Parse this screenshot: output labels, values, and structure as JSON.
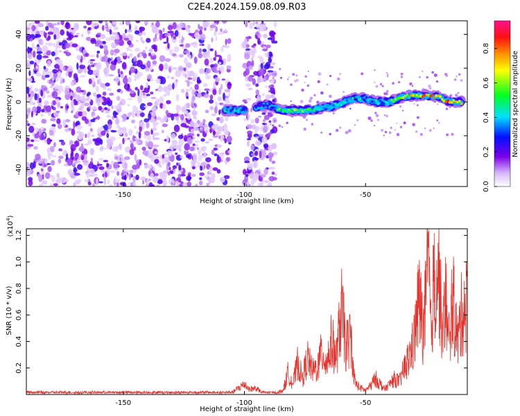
{
  "title": "C2E4.2024.159.08.09.R03",
  "chart_data": [
    {
      "type": "heatmap",
      "xlabel": "Height of straight line (km)",
      "ylabel": "Frequency (Hz)",
      "xlim": [
        -190,
        -8
      ],
      "ylim": [
        -50,
        48
      ],
      "xticks": [
        -150,
        -100,
        -50
      ],
      "yticks": [
        -40,
        -20,
        0,
        20,
        40
      ],
      "colorbar": {
        "label": "Normalized spectral amplitude",
        "range": [
          0,
          0.96
        ],
        "ticks": [
          0.0,
          0.2,
          0.4,
          0.6,
          0.8
        ]
      },
      "noise_band": {
        "x": [
          -190,
          -87
        ],
        "gap": [
          -106,
          -100
        ],
        "y": [
          -50,
          48
        ]
      },
      "ridge": {
        "x": [
          -108,
          -100,
          -95,
          -90,
          -85,
          -80,
          -75,
          -70,
          -65,
          -60,
          -55,
          -50,
          -45,
          -40,
          -35,
          -30,
          -25,
          -20,
          -15,
          -10
        ],
        "y": [
          -5,
          -5,
          -3,
          -2,
          -5,
          -5,
          -5,
          -4,
          -3,
          -1,
          2,
          2,
          0,
          0,
          3,
          4,
          4,
          3,
          0,
          0
        ],
        "amplitude": [
          0.5,
          0.45,
          0.35,
          0.3,
          0.6,
          0.75,
          0.55,
          0.5,
          0.5,
          0.45,
          0.5,
          0.4,
          0.45,
          0.55,
          0.65,
          0.9,
          0.85,
          0.8,
          0.9,
          0.85
        ]
      }
    },
    {
      "type": "line",
      "xlabel": "Height of straight line (km)",
      "ylabel": "SNR (10 * v/v)",
      "y_multiplier": "(x10",
      "y_multiplier_exp": "4",
      "xlim": [
        -190,
        -8
      ],
      "ylim": [
        0,
        1.25
      ],
      "xticks": [
        -150,
        -100,
        -50
      ],
      "yticks": [
        0.2,
        0.4,
        0.6,
        0.8,
        1.0,
        1.2
      ],
      "color": "#e8312a",
      "series": [
        {
          "x": [
            -190,
            -160,
            -130,
            -105,
            -100,
            -98,
            -95,
            -93,
            -90,
            -88,
            -86,
            -84,
            -82,
            -80,
            -78,
            -76,
            -74,
            -72,
            -70,
            -68,
            -66,
            -64,
            -62,
            -60,
            -58,
            -56,
            -55,
            -54,
            -52,
            -50,
            -48,
            -46,
            -44,
            -42,
            -40,
            -38,
            -36,
            -34,
            -32,
            -30,
            -28,
            -26,
            -24,
            -23,
            -22,
            -20,
            -18,
            -17,
            -16,
            -14,
            -12,
            -10,
            -8
          ],
          "y": [
            0.02,
            0.02,
            0.02,
            0.02,
            0.1,
            0.05,
            0.06,
            0.02,
            0.02,
            0.02,
            0.02,
            0.04,
            0.2,
            0.1,
            0.3,
            0.15,
            0.35,
            0.22,
            0.25,
            0.4,
            0.3,
            0.5,
            0.35,
            0.8,
            0.45,
            0.55,
            0.2,
            0.1,
            0.06,
            0.04,
            0.08,
            0.15,
            0.1,
            0.05,
            0.1,
            0.15,
            0.12,
            0.25,
            0.35,
            0.5,
            0.9,
            0.6,
            1.25,
            0.55,
            1.0,
            1.2,
            0.5,
            1.05,
            0.45,
            0.9,
            0.5,
            0.8,
            0.85
          ]
        }
      ]
    }
  ]
}
